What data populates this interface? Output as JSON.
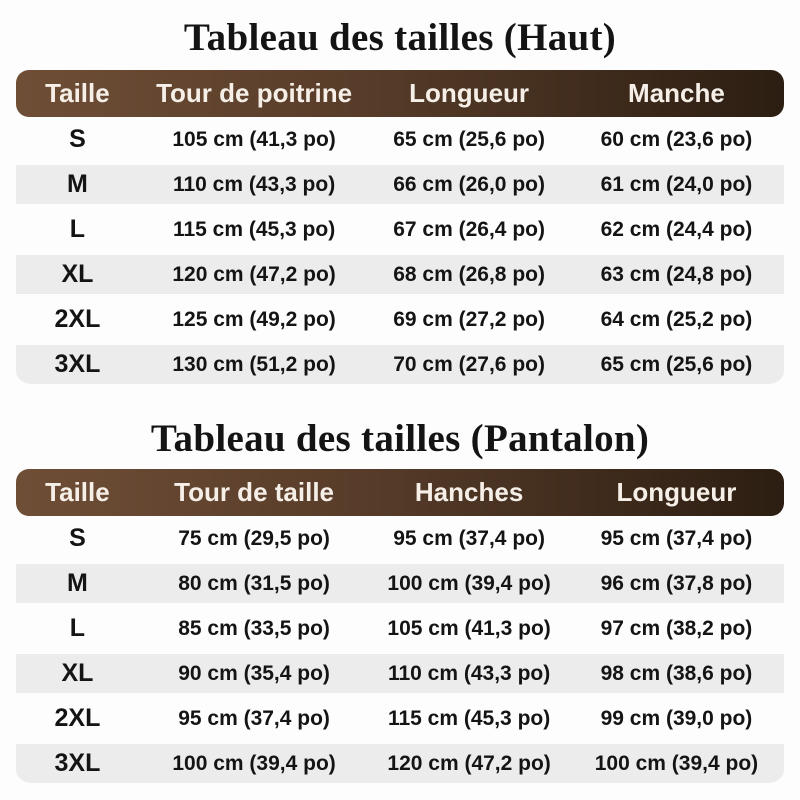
{
  "colors": {
    "page_bg": "#fdfdfd",
    "text": "#141414",
    "header_grad_left": "#6f4e36",
    "header_grad_mid": "#573c29",
    "header_grad_right": "#2c1e12",
    "header_text": "#f5efe8",
    "row_alt_bg": "#ececec"
  },
  "chart_data": [
    {
      "type": "table",
      "title": "Tableau des tailles (Haut)",
      "columns": [
        "Taille",
        "Tour de poitrine",
        "Longueur",
        "Manche"
      ],
      "rows": [
        [
          "S",
          "105 cm (41,3 po)",
          "65 cm (25,6 po)",
          "60 cm (23,6 po)"
        ],
        [
          "M",
          "110 cm (43,3 po)",
          "66 cm (26,0 po)",
          "61 cm (24,0 po)"
        ],
        [
          "L",
          "115 cm (45,3 po)",
          "67 cm (26,4 po)",
          "62 cm (24,4 po)"
        ],
        [
          "XL",
          "120 cm (47,2 po)",
          "68 cm (26,8 po)",
          "63 cm (24,8 po)"
        ],
        [
          "2XL",
          "125 cm (49,2 po)",
          "69 cm (27,2 po)",
          "64 cm (25,2 po)"
        ],
        [
          "3XL",
          "130 cm (51,2 po)",
          "70 cm (27,6 po)",
          "65 cm (25,6 po)"
        ]
      ]
    },
    {
      "type": "table",
      "title": "Tableau des tailles (Pantalon)",
      "columns": [
        "Taille",
        "Tour de taille",
        "Hanches",
        "Longueur"
      ],
      "rows": [
        [
          "S",
          "75 cm (29,5 po)",
          "95 cm (37,4 po)",
          "95 cm (37,4 po)"
        ],
        [
          "M",
          "80 cm (31,5 po)",
          "100 cm (39,4 po)",
          "96 cm (37,8 po)"
        ],
        [
          "L",
          "85 cm (33,5 po)",
          "105 cm (41,3 po)",
          "97 cm (38,2 po)"
        ],
        [
          "XL",
          "90 cm (35,4 po)",
          "110 cm (43,3 po)",
          "98 cm (38,6 po)"
        ],
        [
          "2XL",
          "95 cm (37,4 po)",
          "115 cm (45,3 po)",
          "99 cm (39,0 po)"
        ],
        [
          "3XL",
          "100 cm (39,4 po)",
          "120 cm (47,2 po)",
          "100 cm (39,4 po)"
        ]
      ]
    }
  ]
}
